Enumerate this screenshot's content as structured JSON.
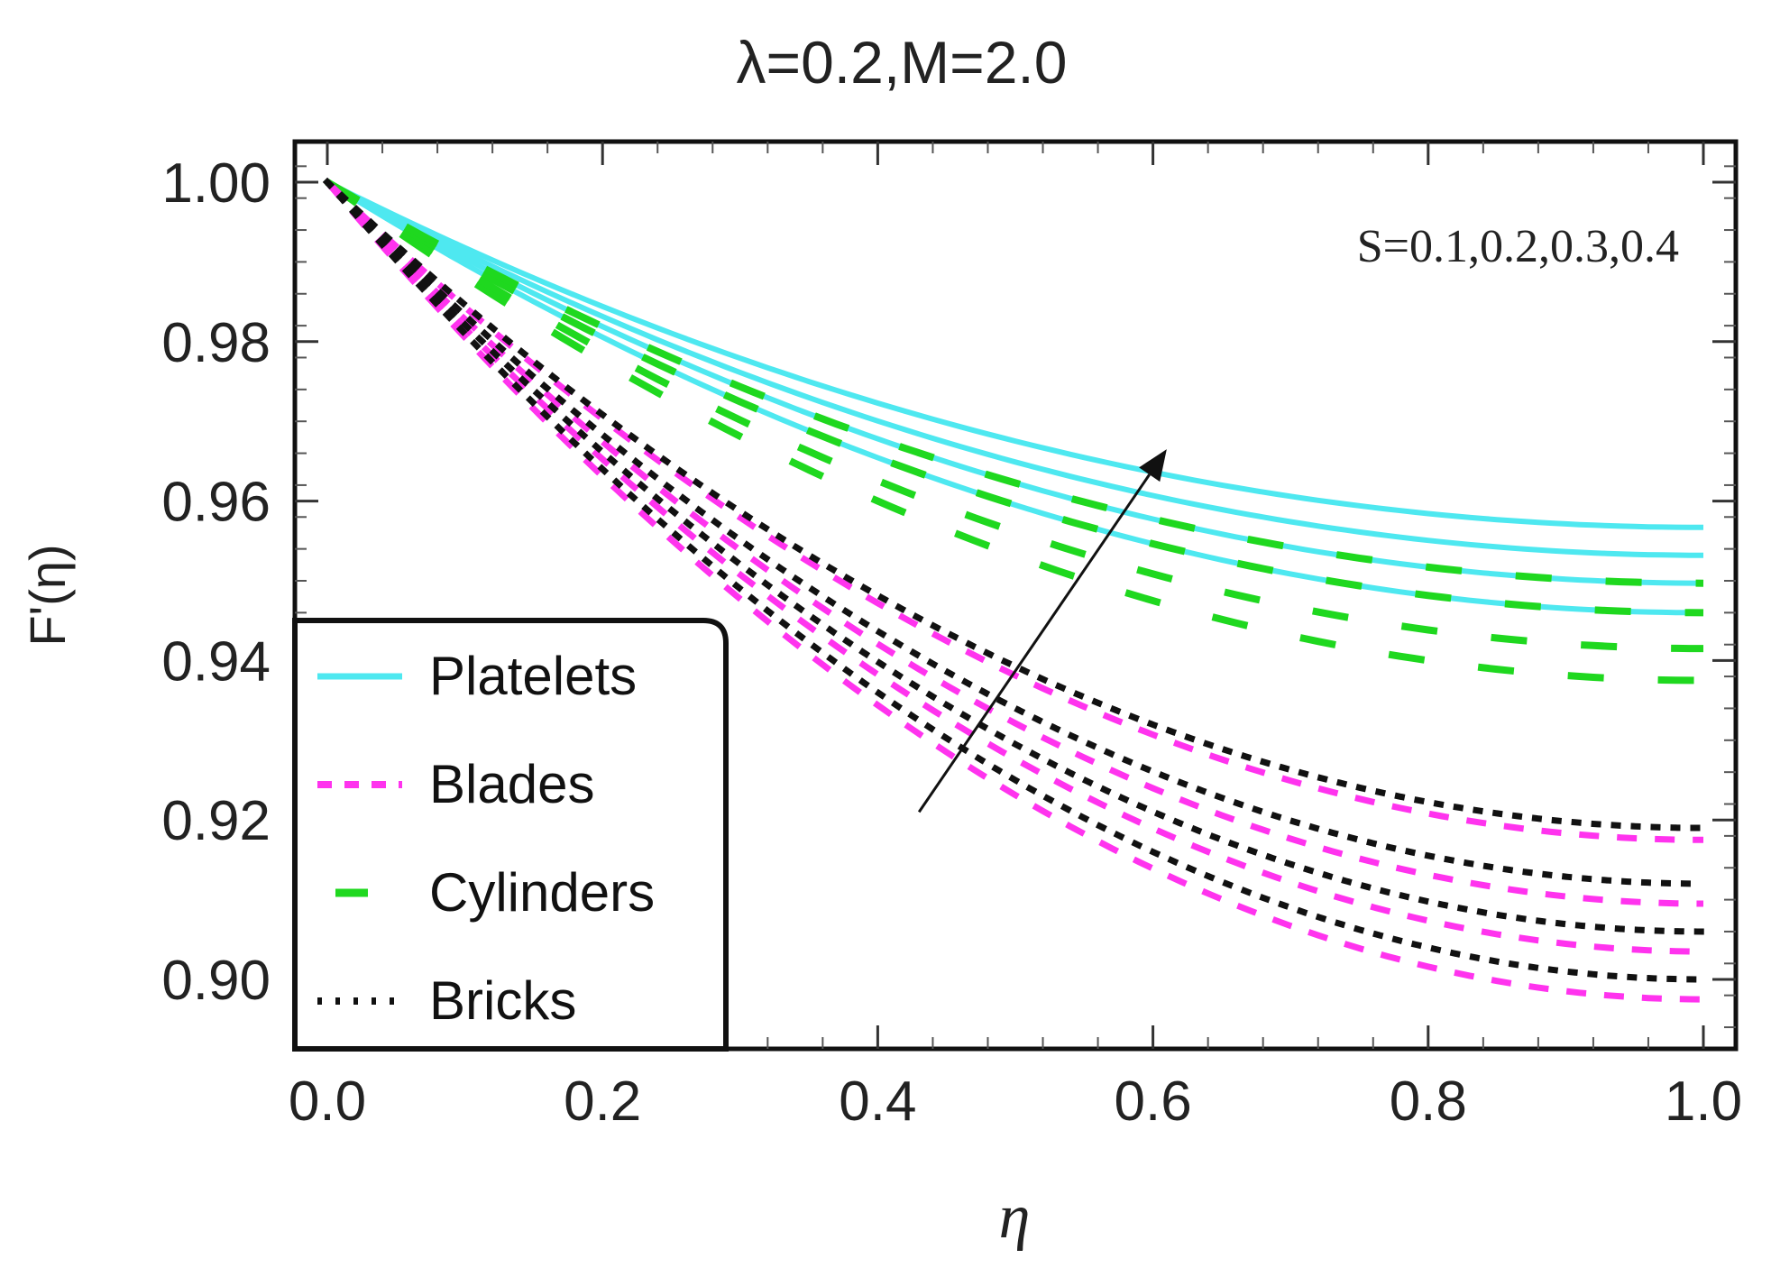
{
  "chart_data": {
    "type": "line",
    "title": "λ=0.2,M=2.0",
    "xlabel": "η",
    "ylabel": "F'(η)",
    "xlim": [
      0.0,
      1.0
    ],
    "ylim": [
      0.892,
      1.006
    ],
    "x_ticks": [
      0.0,
      0.2,
      0.4,
      0.6,
      0.8,
      1.0
    ],
    "x_tick_labels": [
      "0.0",
      "0.2",
      "0.4",
      "0.6",
      "0.8",
      "1.0"
    ],
    "y_ticks": [
      0.9,
      0.92,
      0.94,
      0.96,
      0.98,
      1.0
    ],
    "y_tick_labels": [
      "0.90",
      "0.92",
      "0.94",
      "0.96",
      "0.98",
      "1.00"
    ],
    "annotation": "S=0.1,0.2,0.3,0.4",
    "arrow": {
      "from": [
        0.43,
        0.921
      ],
      "to": [
        0.61,
        0.9665
      ]
    },
    "legend": {
      "position": "bottom-left",
      "items": [
        {
          "label": "Platelets",
          "style": "solid",
          "color": "#4ee8f0"
        },
        {
          "label": "Blades",
          "style": "dashed",
          "color": "#ff33ee"
        },
        {
          "label": "Cylinders",
          "style": "longdash",
          "color": "#1fd81f"
        },
        {
          "label": "Bricks",
          "style": "dotted",
          "color": "#111111"
        }
      ]
    },
    "groups": [
      {
        "name": "Platelets",
        "color": "#4ee8f0",
        "style": "solid",
        "S": [
          0.1,
          0.2,
          0.3,
          0.4
        ],
        "end_values": [
          0.946,
          0.9497,
          0.9532,
          0.9567
        ]
      },
      {
        "name": "Cylinders",
        "color": "#1fd81f",
        "style": "longdash",
        "S": [
          0.1,
          0.2,
          0.3,
          0.4
        ],
        "end_values": [
          0.9375,
          0.9415,
          0.946,
          0.9497
        ]
      },
      {
        "name": "Blades",
        "color": "#ff33ee",
        "style": "dashed",
        "S": [
          0.1,
          0.2,
          0.3,
          0.4
        ],
        "end_values": [
          0.8975,
          0.9035,
          0.9095,
          0.9175
        ]
      },
      {
        "name": "Bricks",
        "color": "#111111",
        "style": "dotted",
        "S": [
          0.1,
          0.2,
          0.3,
          0.4
        ],
        "end_values": [
          0.9,
          0.906,
          0.912,
          0.919
        ]
      }
    ]
  }
}
